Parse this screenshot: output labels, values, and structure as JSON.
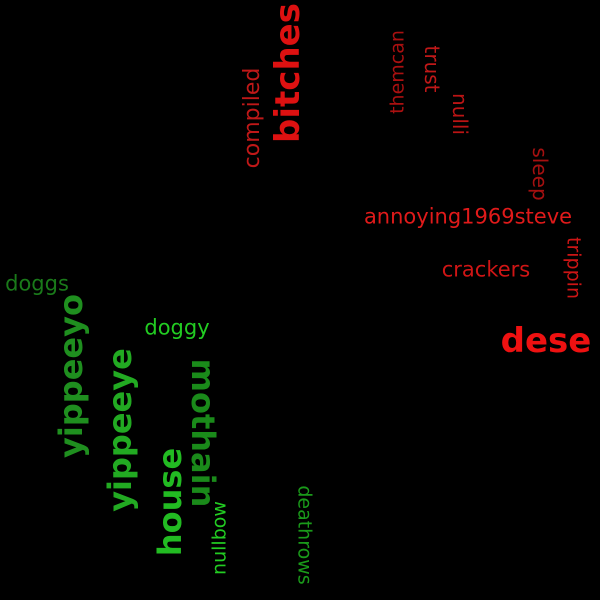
{
  "cloud": {
    "background": "#000000",
    "words": {
      "bitches": {
        "text": "bitches",
        "color": "#dd1111"
      },
      "compiled": {
        "text": "compiled",
        "color": "#c01818"
      },
      "themcan": {
        "text": "themcan",
        "color": "#aa1010"
      },
      "trust": {
        "text": "trust",
        "color": "#c01818"
      },
      "nulli": {
        "text": "nulli",
        "color": "#bb1414"
      },
      "sleep": {
        "text": "sleep",
        "color": "#a51010"
      },
      "annoying": {
        "text": "annoying1969steve",
        "color": "#e01a1a"
      },
      "trippin": {
        "text": "trippin",
        "color": "#cc1515"
      },
      "crackers": {
        "text": "crackers",
        "color": "#d01515"
      },
      "dese": {
        "text": "dese",
        "color": "#ee1111"
      },
      "doggs": {
        "text": "doggs",
        "color": "#1a7a1a"
      },
      "doggy": {
        "text": "doggy",
        "color": "#22cc22"
      },
      "yippeeyo": {
        "text": "yippeeyo",
        "color": "#1f8f1f"
      },
      "yippeeye": {
        "text": "yippeeye",
        "color": "#22aa22"
      },
      "mothain": {
        "text": "mothain",
        "color": "#1a8a1a"
      },
      "house": {
        "text": "house",
        "color": "#22bb22"
      },
      "nullbow": {
        "text": "nullbow",
        "color": "#22cc22"
      },
      "deathrows": {
        "text": "deathrows",
        "color": "#1a9a1a"
      }
    }
  }
}
